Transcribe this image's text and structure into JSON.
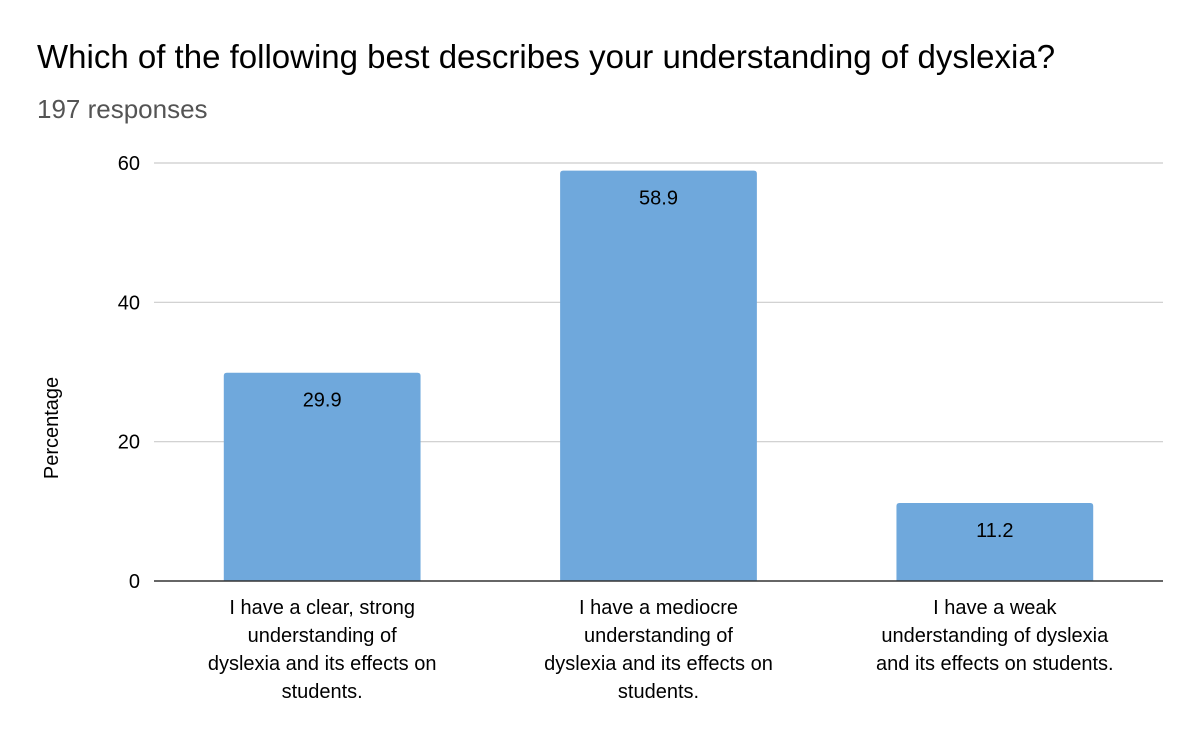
{
  "chart_data": {
    "type": "bar",
    "title": "Which of the following best describes your understanding of dyslexia?",
    "subtitle": "197 responses",
    "xlabel": "",
    "ylabel": "Percentage",
    "ylim": [
      0,
      60
    ],
    "yticks": [
      0,
      20,
      40,
      60
    ],
    "grid": true,
    "legend": "none",
    "bar_color": "#6fa8dc",
    "categories": [
      [
        "I have a clear, strong",
        "understanding of",
        "dyslexia and its effects on",
        "students."
      ],
      [
        "I have a mediocre",
        "understanding of",
        "dyslexia and its effects on",
        "students."
      ],
      [
        "I have a weak",
        "understanding of dyslexia",
        "and its effects on students."
      ]
    ],
    "values": [
      29.9,
      58.9,
      11.2
    ],
    "data_labels": [
      "29.9",
      "58.9",
      "11.2"
    ]
  }
}
